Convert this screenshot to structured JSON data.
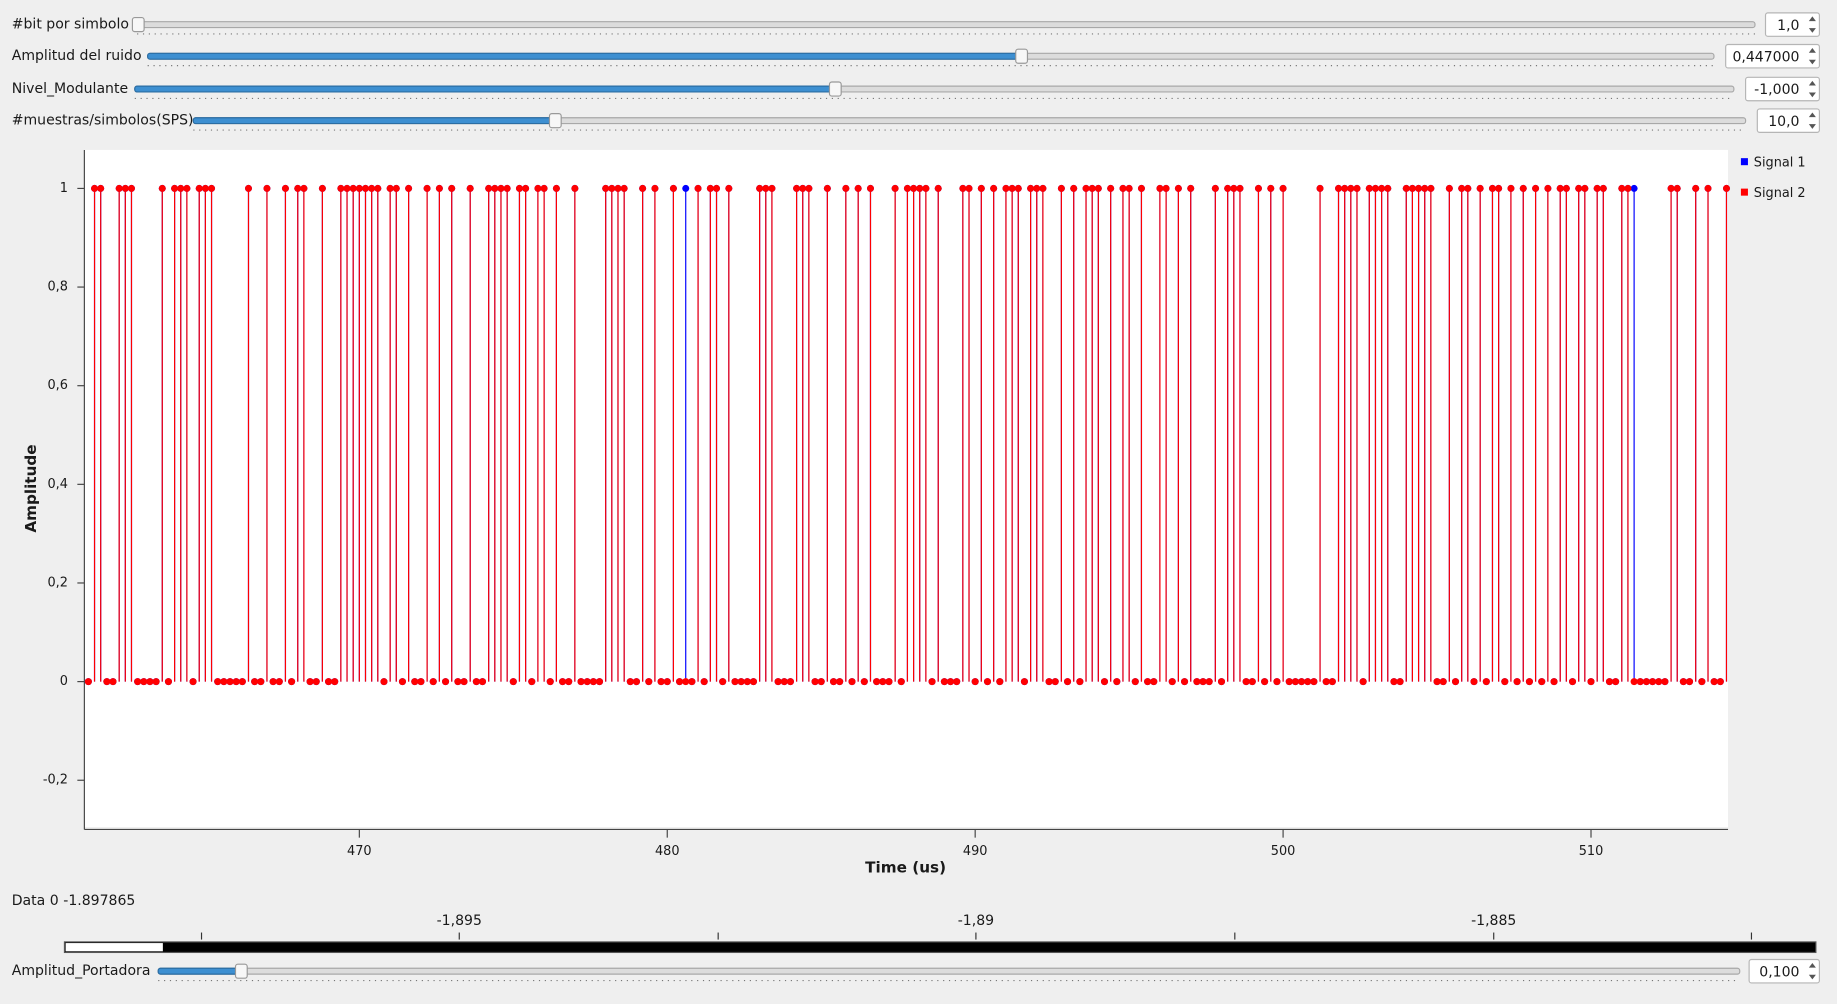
{
  "sliders": [
    {
      "label": "#bit por simbolo",
      "value": "1,0"
    },
    {
      "label": "Amplitud del ruido",
      "value": "0,447000"
    },
    {
      "label": "Nivel_Modulante",
      "value": "-1,000"
    },
    {
      "label": "#muestras/simbolos(SPS)",
      "value": "10,0"
    },
    {
      "label": "Amplitud_Portadora",
      "value": "0,100"
    }
  ],
  "chart_data": {
    "type": "stem",
    "x_label": "Time (us)",
    "y_label": "Amplitude",
    "xlim": [
      461.07,
      514.45
    ],
    "xticks": [
      470,
      480,
      490,
      500,
      510
    ],
    "ylim": [
      -0.295,
      1.078
    ],
    "yticks": [
      {
        "value": -0.2,
        "label": "-0,2"
      },
      0,
      {
        "value": 0.2,
        "label": "0,2"
      },
      {
        "value": 0.4,
        "label": "0,4"
      },
      {
        "value": 0.6,
        "label": "0,6"
      },
      {
        "value": 0.8,
        "label": "0,8"
      },
      1
    ],
    "x": [
      461.2,
      461.4,
      461.6,
      461.8,
      462,
      462.2,
      462.4,
      462.6,
      462.8,
      463,
      463.2,
      463.4,
      463.6,
      463.8,
      464,
      464.2,
      464.4,
      464.6,
      464.8,
      465,
      465.2,
      465.4,
      465.6,
      465.8,
      466,
      466.2,
      466.4,
      466.6,
      466.8,
      467,
      467.2,
      467.4,
      467.6,
      467.8,
      468,
      468.2,
      468.4,
      468.6,
      468.8,
      469,
      469.2,
      469.4,
      469.6,
      469.8,
      470,
      470.2,
      470.4,
      470.6,
      470.8,
      471,
      471.2,
      471.4,
      471.6,
      471.8,
      472,
      472.2,
      472.4,
      472.6,
      472.8,
      473,
      473.2,
      473.4,
      473.6,
      473.8,
      474,
      474.2,
      474.4,
      474.6,
      474.8,
      475,
      475.2,
      475.4,
      475.6,
      475.8,
      476,
      476.2,
      476.4,
      476.6,
      476.8,
      477,
      477.2,
      477.4,
      477.6,
      477.8,
      478,
      478.2,
      478.4,
      478.6,
      478.8,
      479,
      479.2,
      479.4,
      479.6,
      479.8,
      480,
      480.2,
      480.4,
      480.6,
      480.8,
      481,
      481.2,
      481.4,
      481.6,
      481.8,
      482,
      482.2,
      482.4,
      482.6,
      482.8,
      483,
      483.2,
      483.4,
      483.6,
      483.8,
      484,
      484.2,
      484.4,
      484.6,
      484.8,
      485,
      485.2,
      485.4,
      485.6,
      485.8,
      486,
      486.2,
      486.4,
      486.6,
      486.8,
      487,
      487.2,
      487.4,
      487.6,
      487.8,
      488,
      488.2,
      488.4,
      488.6,
      488.8,
      489,
      489.2,
      489.4,
      489.6,
      489.8,
      490,
      490.2,
      490.4,
      490.6,
      490.8,
      491,
      491.2,
      491.4,
      491.6,
      491.8,
      492,
      492.2,
      492.4,
      492.6,
      492.8,
      493,
      493.2,
      493.4,
      493.6,
      493.8,
      494,
      494.2,
      494.4,
      494.6,
      494.8,
      495,
      495.2,
      495.4,
      495.6,
      495.8,
      496,
      496.2,
      496.4,
      496.6,
      496.8,
      497,
      497.2,
      497.4,
      497.6,
      497.8,
      498,
      498.2,
      498.4,
      498.6,
      498.8,
      499,
      499.2,
      499.4,
      499.6,
      499.8,
      500,
      500.2,
      500.4,
      500.6,
      500.8,
      501,
      501.2,
      501.4,
      501.6,
      501.8,
      502,
      502.2,
      502.4,
      502.6,
      502.8,
      503,
      503.2,
      503.4,
      503.6,
      503.8,
      504,
      504.2,
      504.4,
      504.6,
      504.8,
      505,
      505.2,
      505.4,
      505.6,
      505.8,
      506,
      506.2,
      506.4,
      506.6,
      506.8,
      507,
      507.2,
      507.4,
      507.6,
      507.8,
      508,
      508.2,
      508.4,
      508.6,
      508.8,
      509,
      509.2,
      509.4,
      509.6,
      509.8,
      510,
      510.2,
      510.4,
      510.6,
      510.8,
      511,
      511.2,
      511.4,
      511.6,
      511.8,
      512,
      512.2,
      512.4,
      512.6,
      512.8,
      513,
      513.2,
      513.4,
      513.6,
      513.8,
      514,
      514.2,
      514.4
    ],
    "series": [
      {
        "name": "Signal 1",
        "color": "#0000ff",
        "values": [
          0,
          1,
          1,
          0,
          0,
          1,
          1,
          1,
          0,
          0,
          0,
          0,
          1,
          0,
          1,
          1,
          1,
          0,
          1,
          1,
          1,
          0,
          0,
          0,
          0,
          0,
          1,
          0,
          0,
          1,
          0,
          0,
          1,
          0,
          1,
          1,
          0,
          0,
          1,
          0,
          0,
          1,
          1,
          1,
          1,
          1,
          1,
          1,
          0,
          1,
          1,
          0,
          1,
          0,
          0,
          1,
          0,
          1,
          0,
          1,
          0,
          0,
          1,
          0,
          0,
          1,
          1,
          1,
          1,
          0,
          1,
          1,
          0,
          1,
          1,
          0,
          1,
          0,
          0,
          1,
          0,
          0,
          0,
          0,
          1,
          1,
          1,
          1,
          0,
          0,
          1,
          0,
          1,
          0,
          0,
          1,
          0,
          1,
          0,
          1,
          0,
          1,
          1,
          0,
          1,
          0,
          0,
          0,
          0,
          1,
          1,
          1,
          0,
          0,
          0,
          1,
          1,
          1,
          0,
          0,
          1,
          0,
          0,
          1,
          0,
          1,
          0,
          1,
          0,
          0,
          0,
          1,
          0,
          1,
          1,
          1,
          1,
          0,
          1,
          0,
          0,
          0,
          1,
          1,
          0,
          1,
          0,
          1,
          0,
          1,
          1,
          1,
          0,
          1,
          1,
          1,
          0,
          0,
          1,
          0,
          1,
          0,
          1,
          1,
          1,
          0,
          1,
          0,
          1,
          1,
          0,
          1,
          0,
          0,
          1,
          1,
          0,
          1,
          0,
          1,
          0,
          0,
          0,
          1,
          0,
          1,
          1,
          1,
          0,
          0,
          1,
          0,
          1,
          0,
          1,
          0,
          0,
          0,
          0,
          0,
          1,
          0,
          0,
          1,
          1,
          1,
          1,
          0,
          1,
          1,
          1,
          1,
          0,
          0,
          1,
          1,
          1,
          1,
          1,
          0,
          0,
          1,
          0,
          1,
          1,
          0,
          1,
          0,
          1,
          1,
          0,
          1,
          0,
          1,
          0,
          1,
          0,
          1,
          0,
          1,
          1,
          0,
          1,
          1,
          0,
          1,
          1,
          0,
          0,
          1,
          1,
          1,
          0,
          0,
          0,
          0,
          0,
          1,
          1,
          0,
          0,
          1,
          0,
          1,
          0,
          0,
          1
        ]
      },
      {
        "name": "Signal 2",
        "color": "#ff0000",
        "values": [
          0,
          1,
          1,
          0,
          0,
          1,
          1,
          1,
          0,
          0,
          0,
          0,
          1,
          0,
          1,
          1,
          1,
          0,
          1,
          1,
          1,
          0,
          0,
          0,
          0,
          0,
          1,
          0,
          0,
          1,
          0,
          0,
          1,
          0,
          1,
          1,
          0,
          0,
          1,
          0,
          0,
          1,
          1,
          1,
          1,
          1,
          1,
          1,
          0,
          1,
          1,
          0,
          1,
          0,
          0,
          1,
          0,
          1,
          0,
          1,
          0,
          0,
          1,
          0,
          0,
          1,
          1,
          1,
          1,
          0,
          1,
          1,
          0,
          1,
          1,
          0,
          1,
          0,
          0,
          1,
          0,
          0,
          0,
          0,
          1,
          1,
          1,
          1,
          0,
          0,
          1,
          0,
          1,
          0,
          0,
          1,
          0,
          0,
          0,
          1,
          0,
          1,
          1,
          0,
          1,
          0,
          0,
          0,
          0,
          1,
          1,
          1,
          0,
          0,
          0,
          1,
          1,
          1,
          0,
          0,
          1,
          0,
          0,
          1,
          0,
          1,
          0,
          1,
          0,
          0,
          0,
          1,
          0,
          1,
          1,
          1,
          1,
          0,
          1,
          0,
          0,
          0,
          1,
          1,
          0,
          1,
          0,
          1,
          0,
          1,
          1,
          1,
          0,
          1,
          1,
          1,
          0,
          0,
          1,
          0,
          1,
          0,
          1,
          1,
          1,
          0,
          1,
          0,
          1,
          1,
          0,
          1,
          0,
          0,
          1,
          1,
          0,
          1,
          0,
          1,
          0,
          0,
          0,
          1,
          0,
          1,
          1,
          1,
          0,
          0,
          1,
          0,
          1,
          0,
          1,
          0,
          0,
          0,
          0,
          0,
          1,
          0,
          0,
          1,
          1,
          1,
          1,
          0,
          1,
          1,
          1,
          1,
          0,
          0,
          1,
          1,
          1,
          1,
          1,
          0,
          0,
          1,
          0,
          1,
          1,
          0,
          1,
          0,
          1,
          1,
          0,
          1,
          0,
          1,
          0,
          1,
          0,
          1,
          0,
          1,
          1,
          0,
          1,
          1,
          0,
          1,
          1,
          0,
          0,
          1,
          1,
          0,
          0,
          0,
          0,
          0,
          0,
          1,
          1,
          0,
          0,
          1,
          0,
          1,
          0,
          0,
          1
        ]
      }
    ]
  },
  "data_panel": {
    "name": "Data 0",
    "value": "-1.897865",
    "ticks": [
      "-1,895",
      "-1,89",
      "-1,885"
    ]
  }
}
